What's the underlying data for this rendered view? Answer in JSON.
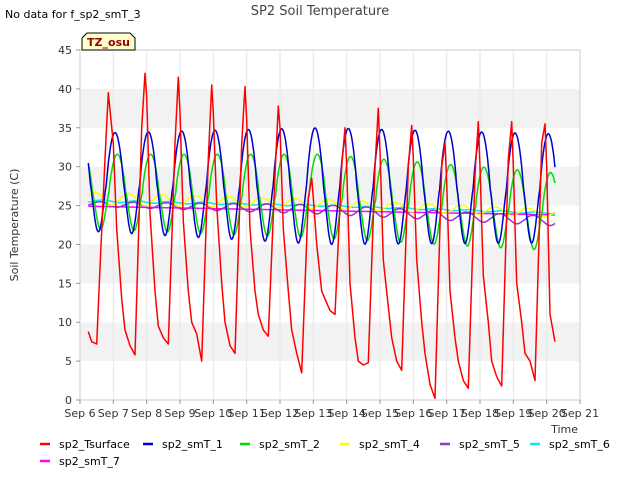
{
  "chart_data": {
    "type": "line",
    "title": "SP2 Soil Temperature",
    "note": "No data for f_sp2_smT_3",
    "badge": "TZ_osu",
    "xlabel": "Time",
    "ylabel": "Soil Temperature (C)",
    "xlim": [
      6,
      21
    ],
    "ylim": [
      0,
      45
    ],
    "x_ticks": [
      6,
      7,
      8,
      9,
      10,
      11,
      12,
      13,
      14,
      15,
      16,
      17,
      18,
      19,
      20,
      21
    ],
    "x_tick_labels": [
      "Sep 6",
      "Sep 7",
      "Sep 8",
      "Sep 9",
      "Sep 10",
      "Sep 11",
      "Sep 12",
      "Sep 13",
      "Sep 14",
      "Sep 15",
      "Sep 16",
      "Sep 17",
      "Sep 18",
      "Sep 19",
      "Sep 20",
      "Sep 21"
    ],
    "y_ticks": [
      0,
      5,
      10,
      15,
      20,
      25,
      30,
      35,
      40,
      45
    ],
    "y_tick_labels": [
      "0",
      "5",
      "10",
      "15",
      "20",
      "25",
      "30",
      "35",
      "40",
      "45"
    ],
    "series": [
      {
        "name": "sp2_Tsurface",
        "color": "#ff0000",
        "x": [
          6.25,
          6.35,
          6.5,
          6.6,
          6.75,
          6.85,
          7.0,
          7.1,
          7.25,
          7.35,
          7.5,
          7.65,
          7.85,
          7.95,
          8.0,
          8.1,
          8.25,
          8.35,
          8.5,
          8.65,
          8.85,
          8.95,
          9.0,
          9.1,
          9.25,
          9.35,
          9.5,
          9.65,
          9.85,
          9.95,
          10.0,
          10.1,
          10.25,
          10.35,
          10.5,
          10.65,
          10.85,
          10.95,
          11.0,
          11.1,
          11.25,
          11.35,
          11.5,
          11.65,
          11.85,
          11.95,
          12.0,
          12.1,
          12.25,
          12.35,
          12.5,
          12.65,
          12.85,
          12.95,
          13.0,
          13.1,
          13.25,
          13.35,
          13.5,
          13.65,
          13.85,
          13.95,
          14.0,
          14.1,
          14.25,
          14.35,
          14.5,
          14.65,
          14.85,
          14.95,
          15.0,
          15.1,
          15.25,
          15.35,
          15.5,
          15.65,
          15.85,
          15.95,
          16.0,
          16.1,
          16.25,
          16.35,
          16.5,
          16.65,
          16.85,
          16.95,
          17.0,
          17.1,
          17.25,
          17.35,
          17.5,
          17.65,
          17.85,
          17.95,
          18.0,
          18.1,
          18.25,
          18.35,
          18.5,
          18.65,
          18.85,
          18.95,
          19.0,
          19.1,
          19.25,
          19.35,
          19.5,
          19.65,
          19.85,
          19.95,
          20.0,
          20.1,
          20.25
        ],
        "y": [
          8.8,
          7.5,
          7.2,
          17,
          31,
          39.5,
          33,
          22,
          13,
          9,
          7,
          5.8,
          35,
          42,
          39,
          24,
          14,
          9.5,
          8,
          7.2,
          33,
          41.5,
          37,
          23,
          14,
          10,
          8.5,
          5,
          31,
          40.5,
          37,
          25,
          15,
          10,
          7,
          6,
          33,
          40.3,
          36,
          22,
          14,
          11,
          9,
          8.2,
          29,
          37.8,
          35,
          22,
          14,
          9,
          6,
          3.5,
          26,
          28.5,
          26,
          20,
          14,
          13,
          11.5,
          11,
          30,
          35,
          30,
          15,
          8,
          5,
          4.5,
          4.8,
          30,
          37.5,
          32,
          18,
          12,
          8,
          5,
          3.8,
          30,
          35.3,
          31,
          18,
          10,
          6,
          2,
          0.2,
          30,
          33,
          28,
          14,
          8,
          5,
          2.5,
          1.5,
          29,
          35.8,
          30,
          16,
          10,
          5,
          3,
          1.8,
          31,
          35.8,
          30,
          15,
          10,
          6,
          5,
          2.5,
          33,
          35.5,
          30,
          11,
          7.5
        ]
      },
      {
        "name": "sp2_smT_1",
        "color": "#0000cc",
        "amplitude_curve": {
          "t0": 6.0,
          "period": 1.0,
          "peak_phase": 0.05,
          "mean": [
            28,
            27.5,
            27.2
          ],
          "amplitude": [
            6.3,
            7.5,
            7.0
          ]
        }
      },
      {
        "name": "sp2_smT_2",
        "color": "#00dd00",
        "amplitude_curve": {
          "t0": 6.0,
          "period": 1.0,
          "peak_phase": 0.12,
          "mean": [
            26.8,
            26.2,
            24.2
          ],
          "amplitude": [
            4.8,
            5.4,
            5.0
          ]
        }
      },
      {
        "name": "sp2_smT_4",
        "color": "#ffff00",
        "amplitude_curve": {
          "t0": 6.0,
          "period": 1.0,
          "peak_phase": 0.45,
          "mean": [
            25.9,
            25.2,
            24.0
          ],
          "amplitude": [
            0.8,
            0.6,
            0.5
          ]
        }
      },
      {
        "name": "sp2_smT_5",
        "color": "#9933cc",
        "amplitude_curve": {
          "t0": 6.0,
          "period": 1.0,
          "peak_phase": 0.6,
          "mean": [
            25.2,
            24.5,
            23.0
          ],
          "amplitude": [
            0.3,
            0.6,
            0.6
          ]
        }
      },
      {
        "name": "sp2_smT_6",
        "color": "#00eeee",
        "amplitude_curve": {
          "t0": 6.0,
          "period": 1.0,
          "peak_phase": 0.7,
          "mean": [
            25.6,
            25.0,
            24.0
          ],
          "amplitude": [
            0.15,
            0.1,
            0.1
          ]
        }
      },
      {
        "name": "sp2_smT_7",
        "color": "#ff00ff",
        "line": {
          "x": [
            6.25,
            20.25
          ],
          "y": [
            24.9,
            23.8
          ]
        }
      }
    ],
    "legend": {
      "placement": "bottom",
      "entries": [
        "sp2_Tsurface",
        "sp2_smT_1",
        "sp2_smT_2",
        "sp2_smT_4",
        "sp2_smT_5",
        "sp2_smT_6",
        "sp2_smT_7"
      ]
    }
  }
}
